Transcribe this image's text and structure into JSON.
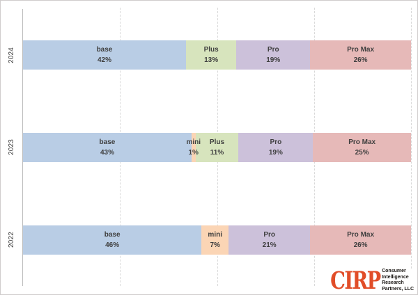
{
  "colors": {
    "segment_fills": {
      "base": "#B9CDE5",
      "mini": "#FBD5B5",
      "Plus": "#D7E4BD",
      "Pro": "#CCC1DA",
      "Pro Max": "#E6B9B8"
    },
    "label_text": "#3F3F3F",
    "gridline": "#D9D9D9",
    "axis_line": "#BFBFBF",
    "logo_orange": "#E14D28"
  },
  "chart_data": {
    "type": "bar",
    "subtype": "horizontal-100pct-stacked",
    "title": "",
    "xlabel": "",
    "ylabel": "",
    "xlim": [
      0,
      100
    ],
    "gridlines_pct": [
      25,
      50,
      75,
      100
    ],
    "grid": "vertical-dashed",
    "legend": "none",
    "label_format": "segment name over percent, centered in segment",
    "categories": [
      "2024",
      "2023",
      "2022"
    ],
    "segment_order": [
      "base",
      "mini",
      "Plus",
      "Pro",
      "Pro Max"
    ],
    "series": [
      {
        "name": "base",
        "values": [
          42,
          43,
          46
        ]
      },
      {
        "name": "mini",
        "values": [
          0,
          1,
          7
        ]
      },
      {
        "name": "Plus",
        "values": [
          13,
          11,
          0
        ]
      },
      {
        "name": "Pro",
        "values": [
          19,
          19,
          21
        ]
      },
      {
        "name": "Pro Max",
        "values": [
          26,
          25,
          26
        ]
      }
    ]
  },
  "logo": {
    "brand": "CIRP",
    "lines": [
      "Consumer",
      "Intelligence",
      "Research",
      "Partners, LLC"
    ]
  }
}
